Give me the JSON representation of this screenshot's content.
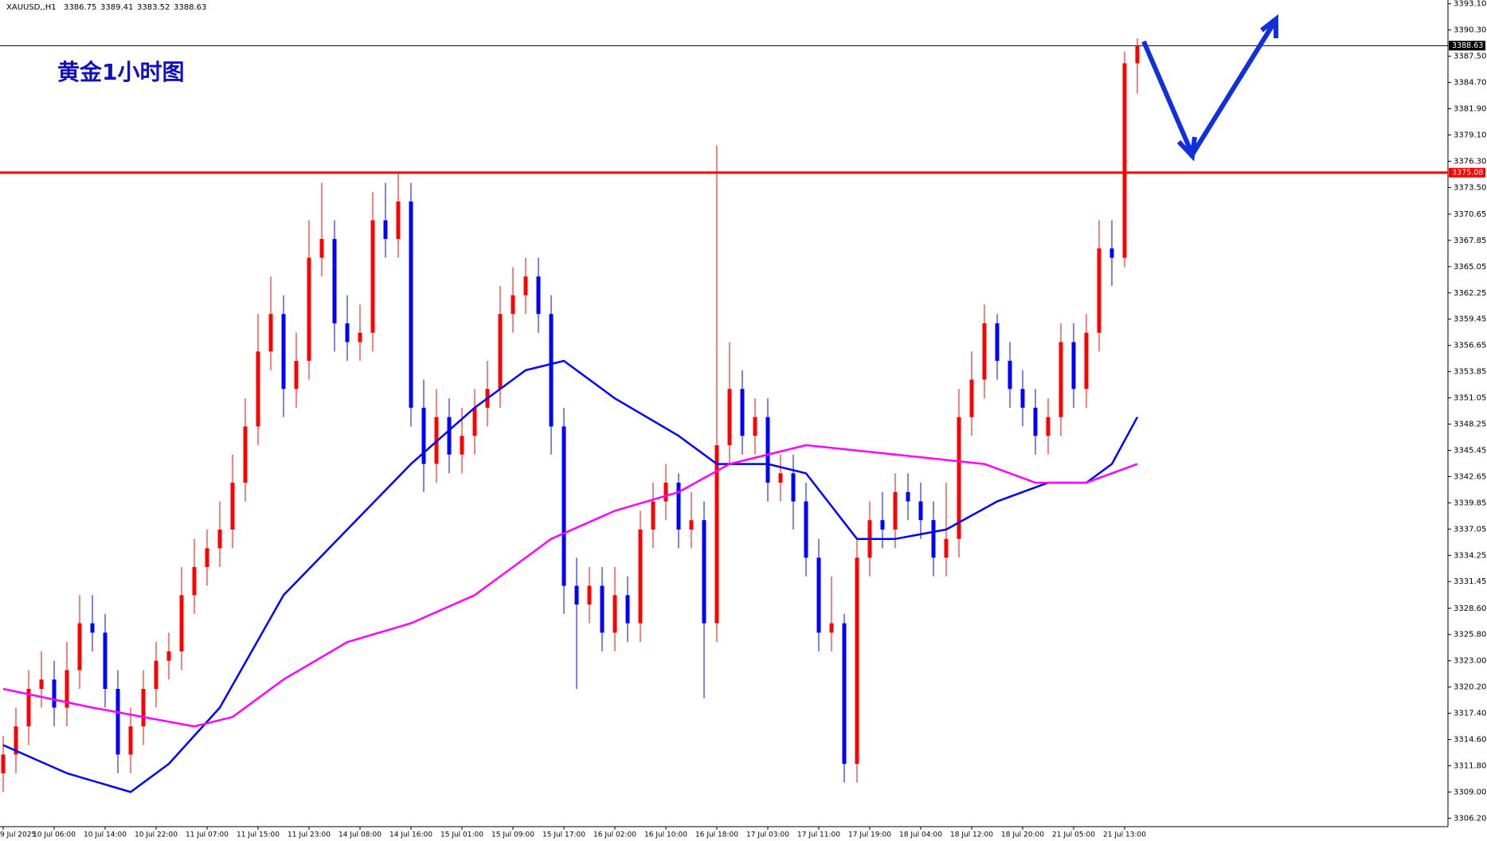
{
  "chart_data": {
    "type": "candlestick",
    "symbol": "XAUUSD,,H1",
    "annotation": "黄金1小时图",
    "up_color": "#ff0000",
    "down_color": "#0000ff",
    "categories": [
      "9 Jul 2025",
      null,
      null,
      null,
      "10 Jul 06:00",
      null,
      null,
      null,
      "10 Jul 14:00",
      null,
      null,
      null,
      "10 Jul 22:00",
      null,
      null,
      null,
      "11 Jul 07:00",
      null,
      null,
      null,
      "11 Jul 15:00",
      null,
      null,
      null,
      "11 Jul 23:00",
      null,
      null,
      null,
      "14 Jul 08:00",
      null,
      null,
      null,
      "14 Jul 16:00",
      null,
      null,
      null,
      "15 Jul 01:00",
      null,
      null,
      null,
      "15 Jul 09:00",
      null,
      null,
      null,
      "15 Jul 17:00",
      null,
      null,
      null,
      "16 Jul 02:00",
      null,
      null,
      null,
      "16 Jul 10:00",
      null,
      null,
      null,
      "16 Jul 18:00",
      null,
      null,
      null,
      "17 Jul 03:00",
      null,
      null,
      null,
      "17 Jul 11:00",
      null,
      null,
      null,
      "17 Jul 19:00",
      null,
      null,
      null,
      "18 Jul 04:00",
      null,
      null,
      null,
      "18 Jul 12:00",
      null,
      null,
      null,
      "18 Jul 20:00",
      null,
      null,
      null,
      "21 Jul 05:00",
      null,
      null,
      null,
      "21 Jul 13:00",
      null
    ],
    "open": [
      3311,
      3313,
      3316,
      3320,
      3321,
      3318,
      3322,
      3327,
      3326,
      3320,
      3313,
      3316,
      3320,
      3323,
      3324,
      3330,
      3333,
      3335,
      3337,
      3342,
      3348,
      3356,
      3360,
      3352,
      3355,
      3366,
      3368,
      3359,
      3357,
      3358,
      3370,
      3368,
      3372,
      3350,
      3344,
      3349,
      3345,
      3347,
      3350,
      3352,
      3360,
      3362,
      3364,
      3360,
      3348,
      3331,
      3329,
      3331,
      3326,
      3330,
      3327,
      3337,
      3340,
      3342,
      3337,
      3338,
      3327,
      3346,
      3352,
      3347,
      3349,
      3342,
      3343,
      3340,
      3334,
      3326,
      3327,
      3312,
      3334,
      3338,
      3337,
      3341,
      3340,
      3338,
      3334,
      3336,
      3349,
      3353,
      3359,
      3355,
      3352,
      3350,
      3347,
      3349,
      3357,
      3352,
      3358,
      3367,
      3366,
      3386.75
    ],
    "high": [
      3315,
      3318,
      3322,
      3324,
      3323,
      3325,
      3330,
      3330,
      3328,
      3322,
      3318,
      3322,
      3325,
      3326,
      3333,
      3336,
      3337,
      3340,
      3345,
      3351,
      3360,
      3364,
      3362,
      3358,
      3370,
      3374,
      3370,
      3362,
      3361,
      3373,
      3374,
      3375,
      3374,
      3353,
      3352,
      3351,
      3350,
      3352,
      3355,
      3363,
      3365,
      3366,
      3366,
      3362,
      3350,
      3334,
      3333,
      3333,
      3333,
      3332,
      3339,
      3342,
      3344,
      3343,
      3341,
      3340,
      3378,
      3357,
      3354,
      3351,
      3351,
      3345,
      3345,
      3342,
      3336,
      3332,
      3328,
      3336,
      3340,
      3341,
      3343,
      3343,
      3342,
      3340,
      3342,
      3352,
      3356,
      3361,
      3360,
      3357,
      3354,
      3352,
      3351,
      3359,
      3359,
      3360,
      3370,
      3370,
      3388,
      3389.41
    ],
    "low": [
      3309,
      3311,
      3314,
      3318,
      3316,
      3316,
      3320,
      3324,
      3318,
      3311,
      3311,
      3314,
      3318,
      3321,
      3322,
      3328,
      3331,
      3333,
      3335,
      3340,
      3346,
      3354,
      3349,
      3350,
      3353,
      3364,
      3356,
      3355,
      3355,
      3356,
      3366,
      3366,
      3348,
      3341,
      3342,
      3343,
      3343,
      3345,
      3348,
      3350,
      3358,
      3360,
      3358,
      3345,
      3328,
      3320,
      3327,
      3324,
      3324,
      3325,
      3325,
      3335,
      3338,
      3335,
      3335,
      3319,
      3325,
      3344,
      3345,
      3345,
      3340,
      3340,
      3337,
      3332,
      3324,
      3324,
      3310,
      3310,
      3332,
      3335,
      3335,
      3338,
      3336,
      3332,
      3332,
      3334,
      3347,
      3351,
      3353,
      3350,
      3348,
      3345,
      3345,
      3347,
      3350,
      3350,
      3356,
      3363,
      3365,
      3383.52
    ],
    "close": [
      3313,
      3316,
      3320,
      3321,
      3318,
      3322,
      3327,
      3326,
      3320,
      3313,
      3316,
      3320,
      3323,
      3324,
      3330,
      3333,
      3335,
      3337,
      3342,
      3348,
      3356,
      3360,
      3352,
      3355,
      3366,
      3368,
      3359,
      3357,
      3358,
      3370,
      3368,
      3372,
      3350,
      3344,
      3349,
      3345,
      3347,
      3350,
      3352,
      3360,
      3362,
      3364,
      3360,
      3348,
      3331,
      3329,
      3331,
      3326,
      3330,
      3327,
      3337,
      3340,
      3342,
      3337,
      3338,
      3327,
      3346,
      3352,
      3347,
      3349,
      3342,
      3343,
      3340,
      3334,
      3326,
      3327,
      3312,
      3334,
      3338,
      3337,
      3341,
      3340,
      3338,
      3334,
      3336,
      3349,
      3353,
      3359,
      3355,
      3352,
      3350,
      3347,
      3349,
      3357,
      3352,
      3358,
      3367,
      3366,
      3386.75,
      3388.63
    ],
    "indicators": [
      {
        "color": "#0000ff",
        "x": [
          0,
          5,
          10,
          13,
          17,
          22,
          27,
          32,
          37,
          41,
          44,
          48,
          53,
          56,
          60,
          63,
          67,
          70,
          74,
          78,
          82,
          85,
          87,
          89
        ],
        "values": [
          3314,
          3311,
          3309,
          3312,
          3318,
          3330,
          3337,
          3344,
          3350,
          3354,
          3355,
          3351,
          3347,
          3344,
          3344,
          3343,
          3336,
          3336,
          3337,
          3340,
          3342,
          3342,
          3344,
          3349
        ]
      },
      {
        "color": "#ff00ff",
        "x": [
          0,
          7,
          15,
          18,
          22,
          27,
          32,
          37,
          43,
          48,
          53,
          57,
          63,
          70,
          77,
          81,
          85,
          89
        ],
        "values": [
          3320,
          3318,
          3316,
          3317,
          3321,
          3325,
          3327,
          3330,
          3336,
          3339,
          3341,
          3344,
          3346,
          3345,
          3344,
          3342,
          3342,
          3344
        ]
      }
    ],
    "price_lines": [
      {
        "value": 3388.63,
        "color": "#000000"
      },
      {
        "value": 3375.08,
        "color": "#ff0000"
      }
    ],
    "ylim": [
      3305.3,
      3393.5
    ],
    "yticks": [
      {
        "value": 3393.1,
        "label": "3393.10"
      },
      {
        "value": 3390.3,
        "label": "3390.30"
      },
      {
        "value": 3387.5,
        "label": "3387.50"
      },
      {
        "value": 3384.7,
        "label": "3384.70"
      },
      {
        "value": 3381.9,
        "label": "3381.90"
      },
      {
        "value": 3379.1,
        "label": "3379.10"
      },
      {
        "value": 3376.3,
        "label": "3376.30"
      },
      {
        "value": 3373.5,
        "label": "3373.50"
      },
      3370.65,
      3367.85,
      3365.05,
      3362.25,
      3359.45,
      3356.65,
      3353.85,
      3351.05,
      3348.25,
      3345.45,
      3342.65,
      3339.85,
      3337.05,
      3334.25,
      3331.45,
      {
        "value": 3328.6,
        "label": "3328.60"
      },
      {
        "value": 3325.8,
        "label": "3325.80"
      },
      {
        "value": 3323,
        "label": "3323.00"
      },
      {
        "value": 3320.2,
        "label": "3320.20"
      },
      {
        "value": 3317.4,
        "label": "3317.40"
      },
      {
        "value": 3314.6,
        "label": "3314.60"
      },
      {
        "value": 3311.8,
        "label": "3311.80"
      },
      {
        "value": 3309,
        "label": "3309.00"
      },
      {
        "value": 3306.2,
        "label": "3306.20"
      }
    ]
  }
}
